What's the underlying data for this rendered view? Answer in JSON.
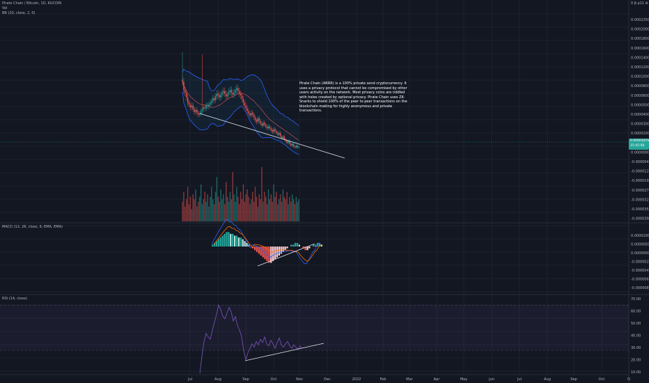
{
  "header": {
    "title": "Pirate Chain / Bitcoin, 1D, KUCOIN",
    "vol_label": "Vol",
    "bb_label": "BB (20, close, 2, 0)"
  },
  "top_right_label": "0 β p11 ⚙",
  "annotation": "Pirate Chain (ARRR) is a 100% private send cryptocurrency. It uses a privacy protocol that cannot be compromised by other users activity on the network. Most privacy coins are riddled with holes created by optional privacy. Pirate Chain uses ZK-Snarks to shield 100% of the peer to peer transactions on the blockchain making for highly anonymous and private transactions.",
  "last_price": {
    "value": "0.00003470",
    "countdown": "15:45:08"
  },
  "colors": {
    "up": "#26a69a",
    "down": "#ef5350",
    "bb": "#2962ff",
    "macd": "#2962ff",
    "signal": "#ff6d00",
    "rsi": "#7e57c2",
    "trendline": "#e0e3eb"
  },
  "panels": {
    "macd_label": "MACD (12, 26, close, 9, EMA, EMA)",
    "rsi_label": "RSI (14, close)"
  },
  "time_axis": [
    "Jul",
    "Aug",
    "Sep",
    "Oct",
    "Nov",
    "Dec",
    "2022",
    "Feb",
    "Mar",
    "Apr",
    "May",
    "Jun",
    "Jul",
    "Aug",
    "Sep",
    "Oct",
    "N"
  ],
  "price_axis": [
    "0.00022500",
    "0.00020000",
    "0.00018000",
    "0.00016000",
    "0.00014000",
    "0.00012000",
    "0.00010000",
    "0.00008000",
    "0.00006000",
    "0.00005000",
    "0.00004000",
    "0.00003000",
    "0.00002000",
    "0.00001000",
    "0.00000000",
    "-0.00000400",
    "-0.00001200",
    "-0.00001900",
    "-0.00002700",
    "-0.00003200",
    "-0.00003500",
    "-0.00003900"
  ],
  "macd_axis": [
    "0.00001000",
    "0.00000500",
    "0.00000000",
    "-0.00000200",
    "-0.00000400",
    "-0.00000600",
    "-0.00000800"
  ],
  "rsi_axis": [
    "70.00",
    "60.00",
    "50.00",
    "40.00",
    "30.00",
    "20.00",
    "10.00"
  ],
  "chart_data": [
    {
      "type": "candlestick",
      "x_unit": "date (2021, daily)",
      "x_range": [
        "2021-07-01",
        "2021-10-31"
      ],
      "ylim": [
        2e-05,
        0.00015
      ],
      "close": [
        0.000106,
        9.7e-05,
        9.4e-05,
        8.9e-05,
        8.3e-05,
        8.1e-05,
        7.8e-05,
        8e-05,
        7.6e-05,
        7.3e-05,
        7.5e-05,
        7.2e-05,
        7e-05,
        7.1e-05,
        7.4e-05,
        7.6e-05,
        7.8e-05,
        7.7e-05,
        8e-05,
        7.9e-05,
        8.1e-05,
        8.3e-05,
        8.5e-05,
        8.8e-05,
        8.6e-05,
        9e-05,
        9.3e-05,
        9.1e-05,
        8.9e-05,
        9.2e-05,
        9.4e-05,
        9.6e-05,
        9.3e-05,
        9e-05,
        9.2e-05,
        9.5e-05,
        9.7e-05,
        9.4e-05,
        9.2e-05,
        9.4e-05,
        9.7e-05,
        9.9e-05,
        9.6e-05,
        9.3e-05,
        9.1e-05,
        8.7e-05,
        8.3e-05,
        8e-05,
        7.7e-05,
        7.4e-05,
        7.1e-05,
        6.9e-05,
        7.2e-05,
        7e-05,
        6.7e-05,
        6.4e-05,
        6.2e-05,
        6.6e-05,
        6.3e-05,
        6e-05,
        5.8e-05,
        6.1e-05,
        5.9e-05,
        5.7e-05,
        5.5e-05,
        5.7e-05,
        5.5e-05,
        5.3e-05,
        5.1e-05,
        5.4e-05,
        5.2e-05,
        5e-05,
        4.8e-05,
        5e-05,
        4.6e-05,
        4.4e-05,
        4.6e-05,
        4.3e-05,
        4.1e-05,
        3.9e-05,
        4.1e-05,
        3.8e-05,
        3.6e-05,
        3.8e-05,
        3.5e-05,
        3.4e-05,
        3.6e-05,
        3.4e-05,
        3.47e-05
      ],
      "trendline": {
        "from": [
          "2021-07-10",
          7e-05
        ],
        "to": [
          "2021-11-30",
          2e-05
        ]
      },
      "bollinger": true
    },
    {
      "type": "bar",
      "name": "Vol",
      "values": [
        8,
        12,
        6,
        9,
        14,
        7,
        10,
        5,
        11,
        9,
        13,
        6,
        8,
        10,
        15,
        7,
        9,
        12,
        8,
        11,
        6,
        10,
        14,
        9,
        7,
        12,
        18,
        10,
        8,
        13,
        9,
        11,
        7,
        16,
        10,
        8,
        12,
        9,
        20,
        11,
        8,
        14,
        10,
        7,
        12,
        9,
        15,
        8,
        11,
        13,
        10,
        7,
        9,
        12,
        8,
        14,
        10,
        6,
        11,
        9,
        22,
        8,
        12,
        10,
        7,
        13,
        9,
        11,
        8,
        15,
        10,
        12,
        7,
        9,
        11,
        8,
        13,
        10,
        9,
        12,
        7,
        10,
        8,
        11,
        9,
        7,
        10,
        8,
        9
      ],
      "color_by_candle": true
    },
    {
      "type": "line",
      "name": "MACD",
      "histogram": [
        1,
        2,
        3,
        4,
        5,
        6,
        7,
        8,
        8,
        7,
        7,
        6,
        6,
        5,
        5,
        4,
        3,
        2,
        1,
        0,
        -1,
        -2,
        -3,
        -4,
        -5,
        -6,
        -7,
        -8,
        -9,
        -9,
        -8,
        -7,
        -6,
        -5,
        -4,
        -3,
        -2,
        -1,
        0,
        1,
        1,
        2,
        2,
        1,
        0,
        -1,
        -2,
        -2,
        -1,
        0,
        1,
        1,
        2,
        2,
        1
      ],
      "trendline": true
    },
    {
      "type": "line",
      "name": "RSI",
      "values": [
        10,
        25,
        38,
        45,
        42,
        40,
        48,
        55,
        62,
        70,
        66,
        60,
        58,
        63,
        68,
        64,
        56,
        60,
        52,
        48,
        42,
        30,
        22,
        28,
        32,
        36,
        33,
        38,
        35,
        40,
        37,
        42,
        36,
        34,
        39,
        36,
        32,
        37,
        41,
        35,
        33,
        36,
        38,
        34,
        32,
        35,
        33,
        31,
        34,
        32
      ],
      "ylim": [
        10,
        75
      ],
      "bands": [
        30,
        70
      ],
      "trendline": true
    }
  ]
}
